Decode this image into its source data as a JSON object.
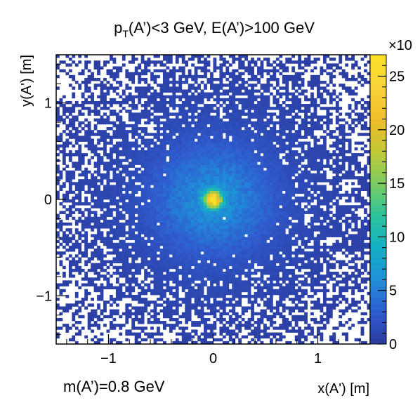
{
  "chart_data": {
    "type": "heatmap",
    "title_main": "p",
    "title_sub": "T",
    "title_rest": "(A’)<3 GeV, E(A’)>100 GeV",
    "xlabel": "x(A') [m]",
    "ylabel": "y(A') [m]",
    "annotation": "m(A’)=0.8 GeV",
    "xlim": [
      -1.5,
      1.5
    ],
    "ylim": [
      -1.5,
      1.5
    ],
    "x_ticks": [
      -1,
      0,
      1
    ],
    "x_tick_labels": [
      "−1",
      "0",
      "1"
    ],
    "y_ticks": [
      -1,
      0,
      1
    ],
    "y_tick_labels": [
      "−1",
      "0",
      "1"
    ],
    "colorbar": {
      "min": 0,
      "max": 27,
      "ticks": [
        0,
        5,
        10,
        15,
        20,
        25
      ],
      "tick_labels": [
        "0",
        "5",
        "10",
        "15",
        "20",
        "25"
      ],
      "multiplier": "×10",
      "colors": [
        "#2b3a9e",
        "#2f5ccf",
        "#1f8fd8",
        "#14b0c4",
        "#2cc39a",
        "#7ccc62",
        "#c2c936",
        "#f0bd2a",
        "#f8d43a",
        "#fae024"
      ]
    },
    "distribution": {
      "shape": "2D Gaussian peak centered at origin",
      "center": [
        0,
        0
      ],
      "peak_value": 25,
      "bins_per_axis": 100
    }
  }
}
